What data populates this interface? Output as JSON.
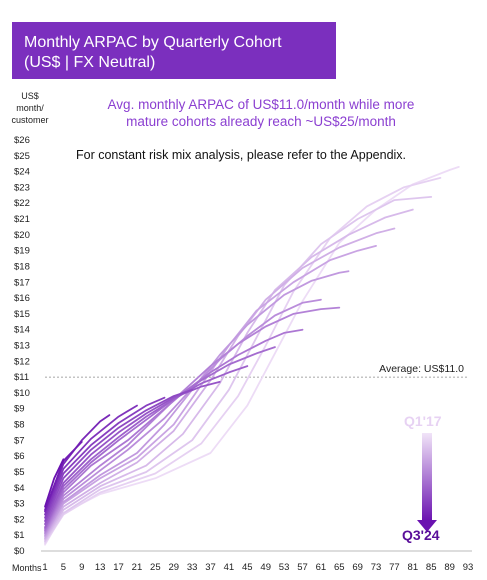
{
  "header": {
    "title_line1": "Monthly ARPAC by Quarterly Cohort",
    "title_line2": "(US$ | FX Neutral)"
  },
  "subtitle": {
    "line1": "Avg. monthly ARPAC of US$11.0/month while more",
    "line2": "mature cohorts already reach ~US$25/month"
  },
  "note": "For constant risk mix analysis, please refer to the Appendix.",
  "y_axis_label": [
    "US$",
    "month/",
    "customer"
  ],
  "x_axis_label": "Months",
  "legend": {
    "newest": "Q3'24",
    "oldest": "Q1'17"
  },
  "colors": {
    "newest": "#6a12b0",
    "oldest": "#eddcf6"
  },
  "chart_data": {
    "type": "line",
    "title": "Monthly ARPAC by Quarterly Cohort (US$ | FX Neutral)",
    "xlabel": "Months",
    "ylabel": "US$ month/ customer",
    "xlim": [
      1,
      93
    ],
    "ylim": [
      0,
      26
    ],
    "x_ticks": [
      1,
      5,
      9,
      13,
      17,
      21,
      25,
      29,
      33,
      37,
      41,
      45,
      49,
      53,
      57,
      61,
      65,
      69,
      73,
      77,
      81,
      85,
      89,
      93
    ],
    "y_ticks": [
      "$0",
      "$1",
      "$2",
      "$3",
      "$4",
      "$5",
      "$6",
      "$7",
      "$8",
      "$9",
      "$10",
      "$11",
      "$12",
      "$13",
      "$14",
      "$15",
      "$16",
      "$17",
      "$18",
      "$19",
      "$20",
      "$21",
      "$22",
      "$23",
      "$24",
      "$25",
      "$26"
    ],
    "reference_line": {
      "y": 11.0,
      "label": "Average: US$11.0"
    },
    "grid": false,
    "series_note": "quarterly cohorts from Q1'17 (oldest, lightest) to Q3'24 (newest, darkest)",
    "series": [
      {
        "values": [
          [
            1,
            0.4
          ],
          [
            5,
            2.4
          ],
          [
            13,
            3.6
          ],
          [
            25,
            4.6
          ],
          [
            37,
            6.2
          ],
          [
            45,
            9.2
          ],
          [
            51,
            12.5
          ],
          [
            57,
            15.8
          ],
          [
            65,
            19.5
          ],
          [
            73,
            21.6
          ],
          [
            81,
            23.2
          ],
          [
            89,
            24.1
          ],
          [
            91,
            24.3
          ]
        ]
      },
      {
        "values": [
          [
            1,
            0.5
          ],
          [
            5,
            2.3
          ],
          [
            13,
            3.7
          ],
          [
            25,
            4.9
          ],
          [
            35,
            6.8
          ],
          [
            43,
            9.8
          ],
          [
            49,
            13.0
          ],
          [
            55,
            16.4
          ],
          [
            63,
            19.8
          ],
          [
            71,
            21.8
          ],
          [
            79,
            23.0
          ],
          [
            87,
            23.6
          ]
        ]
      },
      {
        "values": [
          [
            1,
            0.6
          ],
          [
            5,
            2.4
          ],
          [
            13,
            3.9
          ],
          [
            23,
            5.0
          ],
          [
            33,
            7.0
          ],
          [
            41,
            10.2
          ],
          [
            47,
            13.5
          ],
          [
            53,
            16.8
          ],
          [
            61,
            19.4
          ],
          [
            69,
            21.0
          ],
          [
            77,
            22.2
          ],
          [
            85,
            22.4
          ]
        ]
      },
      {
        "values": [
          [
            1,
            0.7
          ],
          [
            5,
            2.6
          ],
          [
            13,
            4.1
          ],
          [
            23,
            5.4
          ],
          [
            31,
            7.4
          ],
          [
            39,
            10.6
          ],
          [
            45,
            13.8
          ],
          [
            51,
            16.5
          ],
          [
            59,
            18.6
          ],
          [
            67,
            20.0
          ],
          [
            75,
            21.1
          ],
          [
            81,
            21.6
          ]
        ]
      },
      {
        "values": [
          [
            1,
            0.8
          ],
          [
            5,
            2.8
          ],
          [
            13,
            4.3
          ],
          [
            21,
            5.6
          ],
          [
            29,
            7.6
          ],
          [
            37,
            10.8
          ],
          [
            43,
            13.6
          ],
          [
            49,
            15.9
          ],
          [
            57,
            17.9
          ],
          [
            65,
            19.2
          ],
          [
            73,
            20.1
          ],
          [
            77,
            20.4
          ]
        ]
      },
      {
        "values": [
          [
            1,
            0.9
          ],
          [
            5,
            3.0
          ],
          [
            13,
            4.6
          ],
          [
            21,
            5.9
          ],
          [
            29,
            8.0
          ],
          [
            35,
            10.5
          ],
          [
            41,
            13.0
          ],
          [
            47,
            15.2
          ],
          [
            55,
            17.0
          ],
          [
            63,
            18.4
          ],
          [
            69,
            19.0
          ],
          [
            73,
            19.3
          ]
        ]
      },
      {
        "values": [
          [
            1,
            1.0
          ],
          [
            5,
            3.1
          ],
          [
            13,
            4.8
          ],
          [
            21,
            6.2
          ],
          [
            27,
            8.0
          ],
          [
            33,
            10.2
          ],
          [
            39,
            12.4
          ],
          [
            45,
            14.3
          ],
          [
            53,
            16.2
          ],
          [
            59,
            17.1
          ],
          [
            65,
            17.6
          ],
          [
            67,
            17.7
          ]
        ]
      },
      {
        "values": [
          [
            1,
            1.1
          ],
          [
            5,
            3.3
          ],
          [
            13,
            5.1
          ],
          [
            19,
            6.4
          ],
          [
            27,
            8.4
          ],
          [
            33,
            10.3
          ],
          [
            39,
            12.1
          ],
          [
            45,
            13.6
          ],
          [
            51,
            14.9
          ],
          [
            57,
            15.7
          ],
          [
            61,
            15.9
          ]
        ]
      },
      {
        "values": [
          [
            1,
            1.2
          ],
          [
            5,
            3.5
          ],
          [
            13,
            5.4
          ],
          [
            19,
            6.7
          ],
          [
            25,
            8.4
          ],
          [
            31,
            10.1
          ],
          [
            37,
            11.7
          ],
          [
            43,
            13.1
          ],
          [
            49,
            14.2
          ],
          [
            55,
            15.0
          ],
          [
            61,
            15.3
          ],
          [
            65,
            15.4
          ]
        ]
      },
      {
        "values": [
          [
            1,
            1.3
          ],
          [
            5,
            3.7
          ],
          [
            11,
            5.4
          ],
          [
            19,
            7.0
          ],
          [
            25,
            8.5
          ],
          [
            31,
            10.0
          ],
          [
            37,
            11.3
          ],
          [
            43,
            12.4
          ],
          [
            49,
            13.3
          ],
          [
            53,
            13.8
          ],
          [
            57,
            14.0
          ]
        ]
      },
      {
        "values": [
          [
            1,
            1.4
          ],
          [
            5,
            3.9
          ],
          [
            11,
            5.6
          ],
          [
            17,
            7.0
          ],
          [
            23,
            8.3
          ],
          [
            29,
            9.6
          ],
          [
            35,
            10.8
          ],
          [
            41,
            11.8
          ],
          [
            47,
            12.5
          ],
          [
            51,
            12.9
          ]
        ]
      },
      {
        "values": [
          [
            1,
            1.5
          ],
          [
            5,
            4.1
          ],
          [
            11,
            5.8
          ],
          [
            17,
            7.2
          ],
          [
            23,
            8.5
          ],
          [
            29,
            9.6
          ],
          [
            35,
            10.6
          ],
          [
            41,
            11.3
          ],
          [
            45,
            11.7
          ]
        ]
      },
      {
        "values": [
          [
            1,
            1.7
          ],
          [
            5,
            4.3
          ],
          [
            11,
            6.1
          ],
          [
            17,
            7.5
          ],
          [
            23,
            8.7
          ],
          [
            29,
            9.7
          ],
          [
            35,
            10.4
          ],
          [
            39,
            10.7
          ]
        ]
      },
      {
        "values": [
          [
            1,
            1.9
          ],
          [
            5,
            4.6
          ],
          [
            11,
            6.4
          ],
          [
            17,
            7.8
          ],
          [
            23,
            8.9
          ],
          [
            29,
            9.8
          ],
          [
            33,
            10.2
          ]
        ]
      },
      {
        "values": [
          [
            1,
            2.1
          ],
          [
            5,
            4.9
          ],
          [
            11,
            6.7
          ],
          [
            17,
            8.1
          ],
          [
            23,
            9.2
          ],
          [
            27,
            9.7
          ]
        ]
      },
      {
        "values": [
          [
            1,
            2.3
          ],
          [
            5,
            5.2
          ],
          [
            11,
            7.1
          ],
          [
            17,
            8.5
          ],
          [
            21,
            9.2
          ]
        ]
      },
      {
        "values": [
          [
            1,
            2.5
          ],
          [
            5,
            5.5
          ],
          [
            9,
            7.0
          ],
          [
            13,
            8.2
          ],
          [
            15,
            8.6
          ]
        ]
      },
      {
        "values": [
          [
            1,
            2.6
          ],
          [
            5,
            5.7
          ],
          [
            7,
            6.3
          ],
          [
            9,
            6.9
          ]
        ]
      },
      {
        "values": [
          [
            1,
            2.8
          ],
          [
            3,
            4.6
          ],
          [
            5,
            5.8
          ]
        ]
      }
    ]
  }
}
